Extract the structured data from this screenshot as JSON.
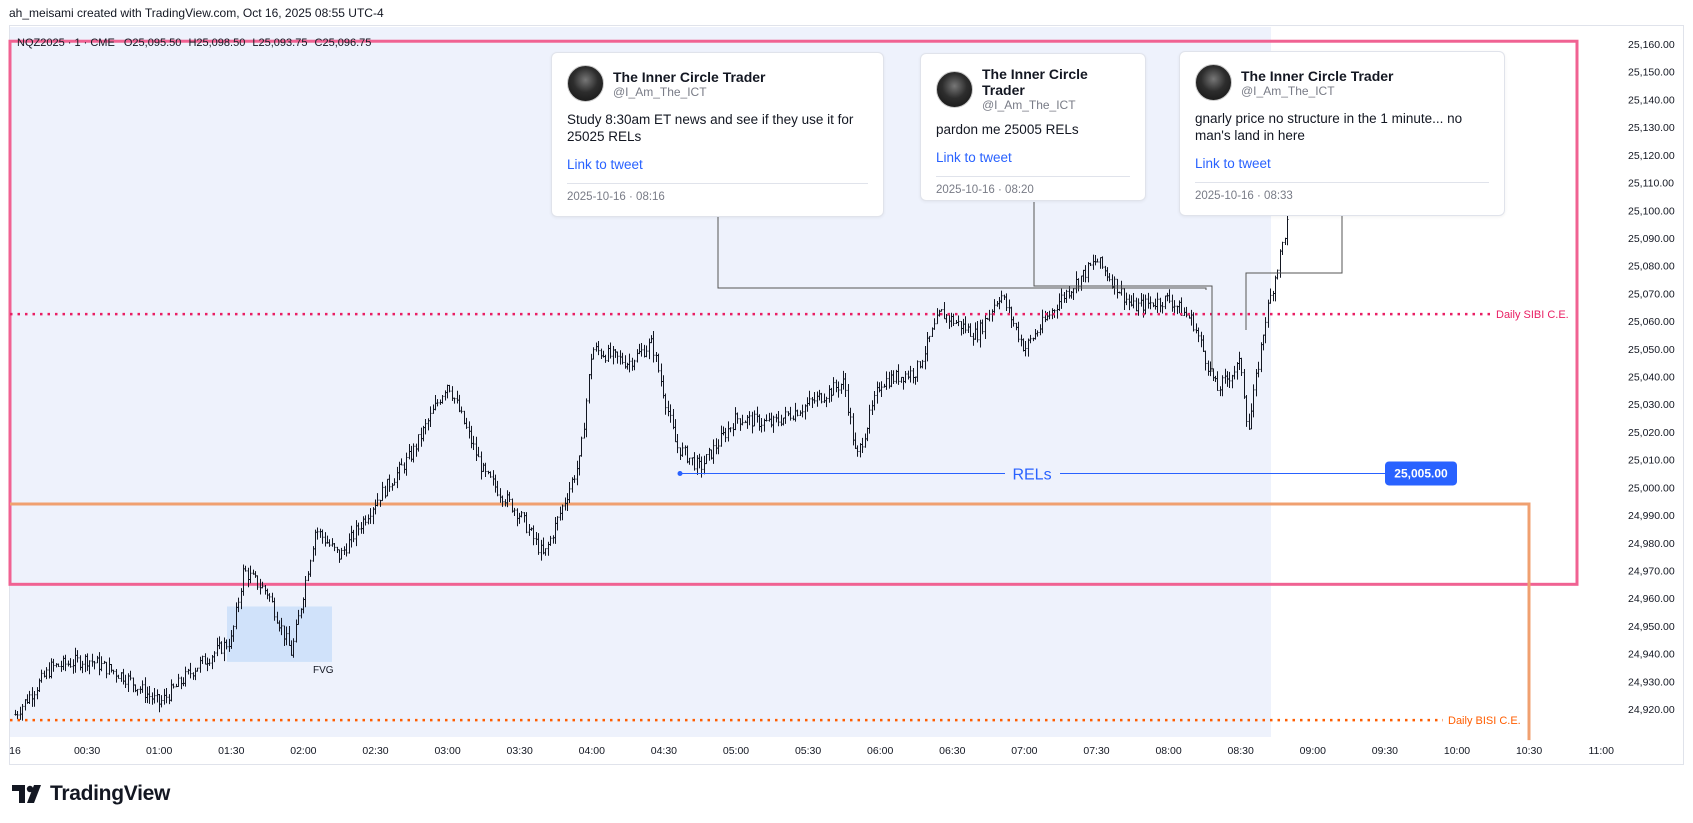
{
  "header": {
    "attribution": "ah_meisami created with TradingView.com, Oct 16, 2025 08:55 UTC-4"
  },
  "symbol_line": {
    "symbol": "NQZ2025 · 1 · CME",
    "open": "O25,095.50",
    "high": "H25,098.50",
    "low": "L25,093.75",
    "close": "C25,096.75"
  },
  "brand": {
    "name": "TradingView"
  },
  "tweets": [
    {
      "author": "The Inner Circle Trader",
      "handle": "@I_Am_The_ICT",
      "text": "Study 8:30am ET news and see if they use it for 25025 RELs",
      "link": "Link to tweet",
      "date": "2025-10-16 · 08:16"
    },
    {
      "author": "The Inner Circle Trader",
      "handle": "@I_Am_The_ICT",
      "text": "pardon me 25005 RELs",
      "link": "Link to tweet",
      "date": "2025-10-16 · 08:20"
    },
    {
      "author": "The Inner Circle Trader",
      "handle": "@I_Am_The_ICT",
      "text": "gnarly price no structure in the 1 minute... no man's land in here",
      "link": "Link to tweet",
      "date": "2025-10-16 · 08:33"
    }
  ],
  "annotations": {
    "rels_label": "RELs",
    "rels_price_badge": "25,005.00",
    "sibi_label": "Daily SIBI C.E.",
    "bisi_label": "Daily BISI C.E.",
    "fvg_label": "FVG"
  },
  "colors": {
    "sibi": "#e91e63",
    "bisi": "#ff5d00",
    "pink_box": "#f06292",
    "orange_box": "#f0a070",
    "rels_line": "#2962ff",
    "badge": "#2962ff",
    "session_bg": "#eef2fc",
    "fvg_box": "#cce0fa"
  },
  "chart_data": {
    "type": "candlestick",
    "symbol": "NQZ2025",
    "interval": "1",
    "y_axis": {
      "min": 24910,
      "max": 25165,
      "tick_labels": [
        "25,160.00",
        "25,150.00",
        "25,140.00",
        "25,130.00",
        "25,120.00",
        "25,110.00",
        "25,100.00",
        "25,090.00",
        "25,080.00",
        "25,070.00",
        "25,060.00",
        "25,050.00",
        "25,040.00",
        "25,030.00",
        "25,020.00",
        "25,010.00",
        "25,000.00",
        "24,990.00",
        "24,980.00",
        "24,970.00",
        "24,960.00",
        "24,950.00",
        "24,940.00",
        "24,930.00",
        "24,920.00"
      ]
    },
    "x_axis": {
      "tick_labels": [
        "16",
        "00:30",
        "01:00",
        "01:30",
        "02:00",
        "02:30",
        "03:00",
        "03:30",
        "04:00",
        "04:30",
        "05:00",
        "05:30",
        "06:00",
        "06:30",
        "07:00",
        "07:30",
        "08:00",
        "08:30",
        "09:00",
        "09:30",
        "10:00",
        "10:30",
        "11:00"
      ]
    },
    "price_path": [
      [
        "00:00",
        24918
      ],
      [
        "00:15",
        24935
      ],
      [
        "00:30",
        24938
      ],
      [
        "00:45",
        24932
      ],
      [
        "01:00",
        24922
      ],
      [
        "01:15",
        24935
      ],
      [
        "01:30",
        24945
      ],
      [
        "01:35",
        24970
      ],
      [
        "01:45",
        24962
      ],
      [
        "01:55",
        24940
      ],
      [
        "02:05",
        24985
      ],
      [
        "02:15",
        24975
      ],
      [
        "02:30",
        24995
      ],
      [
        "02:45",
        25012
      ],
      [
        "03:00",
        25038
      ],
      [
        "03:15",
        25005
      ],
      [
        "03:30",
        24990
      ],
      [
        "03:40",
        24975
      ],
      [
        "03:55",
        25010
      ],
      [
        "04:00",
        25050
      ],
      [
        "04:15",
        25045
      ],
      [
        "04:25",
        25052
      ],
      [
        "04:35",
        25015
      ],
      [
        "04:45",
        25007
      ],
      [
        "05:00",
        25025
      ],
      [
        "05:15",
        25023
      ],
      [
        "05:30",
        25030
      ],
      [
        "05:45",
        25038
      ],
      [
        "05:50",
        25010
      ],
      [
        "06:00",
        25038
      ],
      [
        "06:15",
        25042
      ],
      [
        "06:25",
        25063
      ],
      [
        "06:40",
        25055
      ],
      [
        "06:50",
        25070
      ],
      [
        "07:00",
        25050
      ],
      [
        "07:15",
        25068
      ],
      [
        "07:30",
        25082
      ],
      [
        "07:45",
        25065
      ],
      [
        "08:00",
        25068
      ],
      [
        "08:10",
        25060
      ],
      [
        "08:20",
        25035
      ],
      [
        "08:30",
        25045
      ],
      [
        "08:33",
        25020
      ],
      [
        "08:40",
        25060
      ],
      [
        "08:50",
        25098
      ]
    ],
    "levels": [
      {
        "name": "Daily SIBI C.E.",
        "price": 25062.5
      },
      {
        "name": "Daily BISI C.E.",
        "price": 24916
      },
      {
        "name": "RELs",
        "price": 25005
      }
    ],
    "zones": [
      {
        "name": "premium range",
        "price_top": 25161,
        "price_bottom": 24965
      },
      {
        "name": "discount range",
        "price_top": 24994,
        "price_bottom": 24916
      },
      {
        "name": "FVG",
        "price_top": 24957,
        "price_bottom": 24937
      }
    ]
  }
}
